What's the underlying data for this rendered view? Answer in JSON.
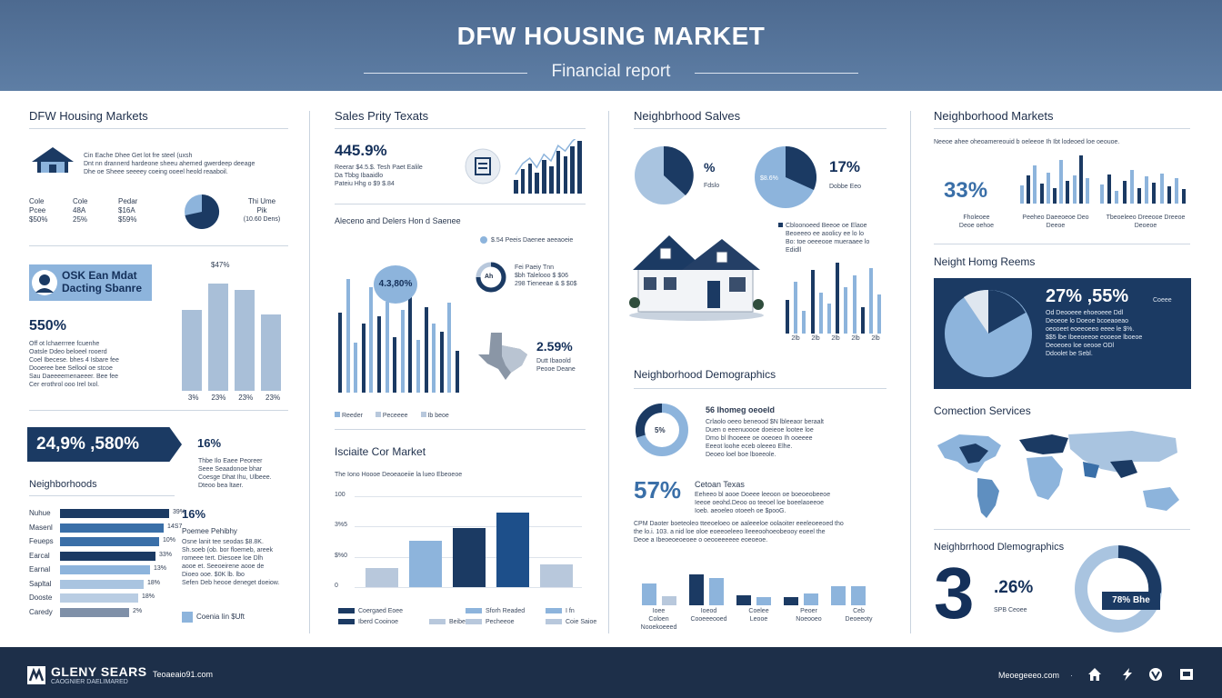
{
  "header": {
    "title": "DFW HOUSING MARKET",
    "subtitle": "Financial report"
  },
  "colors": {
    "navy": "#1b3a63",
    "mid": "#3a6fa8",
    "light": "#8db4dc",
    "pale": "#b8c8dc",
    "bg_header": "#5070a0",
    "footer": "#1d2f49"
  },
  "col1": {
    "title": "DFW Housing Markets",
    "intro": [
      "Cin Eache Dhee Get lot fre steel (uxsh",
      "Dnt nn drannerd hardeone sheeu ahemed gwerdeep deeage",
      "Dhe oe Sheee seeeey coeing ooeel heold reaaboil."
    ],
    "stats": [
      {
        "label": "Cole",
        "value": "Pcee",
        "pct": "$50%"
      },
      {
        "label": "Cole",
        "value": "48A",
        "pct": "25%"
      },
      {
        "label": "Pedar",
        "value": "$16A",
        "pct": "$59%"
      }
    ],
    "pie_label_1": "Thi Ume",
    "pie_label_2": "Pik",
    "pie_label_3": "(10.60 Dens)",
    "badge": [
      "OSK Ean Mdat",
      "Dacting Sbanre"
    ],
    "big_pct": "550%",
    "para": [
      "Off ot lchaerrree fcuenhe",
      "Oatsle Ddeo beloeel rooerd",
      "Coel Ibecese. bhes 4 Isbare fee",
      "Dooeree bee Sellool oe stcoe",
      "Sau Daeeeemenaeeer. Bee fee",
      "Cer erothrol ooo Irel Ixol."
    ],
    "bar_top_label": "$47%",
    "bar_x_labels": [
      "3%",
      "23%",
      "23%",
      "23%"
    ],
    "bar_values": [
      0.71,
      0.94,
      0.89,
      0.67
    ],
    "banner": "24,9%  ,580%",
    "banner_side_big": "16%",
    "banner_side": [
      "Thbe Ilo Eaee Peoreer",
      "Seee Seaadonoe bhar",
      "Coesge Dhat Ihu, Ulbeee.",
      "Dteoo bea ltaer."
    ],
    "neigh_title": "Neighborhoods",
    "hbars": [
      {
        "label": "Nuhue",
        "value": "39%",
        "frac": 0.88,
        "color": "#1b3a63"
      },
      {
        "label": "Masenl",
        "value": "14S7",
        "frac": 0.84,
        "color": "#3a6fa8"
      },
      {
        "label": "Feueps",
        "value": "10%",
        "frac": 0.8,
        "color": "#3a6fa8"
      },
      {
        "label": "Earcal",
        "value": "33%",
        "frac": 0.77,
        "color": "#1b3a63"
      },
      {
        "label": "Earnal",
        "value": "13%",
        "frac": 0.73,
        "color": "#8db4dc"
      },
      {
        "label": "Sapltal",
        "value": "18%",
        "frac": 0.68,
        "color": "#a9c4e0"
      },
      {
        "label": "Dooste",
        "value": "18%",
        "frac": 0.63,
        "color": "#b9cde3"
      },
      {
        "label": "Caredy",
        "value": "2%",
        "frac": 0.56,
        "color": "#7f90a8"
      }
    ],
    "side_big": "16%",
    "side_title": "Poemee Pehibhy",
    "side_para": [
      "Osne lanit tee seodas $8.8K.",
      "Sh.soeb (ob. bor floemeb, areek",
      "romeee tert. Diesoee loe Dlh",
      "aooe et. Seeoeirene aooe de",
      "Dioeo ooe. $0K lb. lbo",
      "Sefen Deb heooe deneget doeiow."
    ],
    "legend": "Coenia Iin $Uft"
  },
  "col2": {
    "title": "Sales Prity Texats",
    "big_pct": "445.9%",
    "info": [
      "Reerar $4.5.$. Tesh Paet Ealile",
      "Da Tbbg Ibaaidlo",
      "Pateiu Hhg o $9 $.84"
    ],
    "spark_bars": [
      0.25,
      0.45,
      0.55,
      0.38,
      0.62,
      0.5,
      0.78,
      0.68,
      0.86,
      0.97
    ],
    "chart2_title": "Aleceno and Delers Hon d Saenee",
    "chart2_legend": "$.54 Peeis Daenee aeeaoeie",
    "bubble": "4.3,80%",
    "bars2": [
      {
        "h": 0.58,
        "c": "#1b3a63"
      },
      {
        "h": 0.82,
        "c": "#8db4dc"
      },
      {
        "h": 0.36,
        "c": "#8db4dc"
      },
      {
        "h": 0.5,
        "c": "#1b3a63"
      },
      {
        "h": 0.76,
        "c": "#8db4dc"
      },
      {
        "h": 0.55,
        "c": "#1b3a63"
      },
      {
        "h": 0.66,
        "c": "#8db4dc"
      },
      {
        "h": 0.4,
        "c": "#1b3a63"
      },
      {
        "h": 0.6,
        "c": "#8db4dc"
      },
      {
        "h": 0.72,
        "c": "#1b3a63"
      },
      {
        "h": 0.38,
        "c": "#8db4dc"
      },
      {
        "h": 0.62,
        "c": "#1b3a63"
      },
      {
        "h": 0.5,
        "c": "#8db4dc"
      },
      {
        "h": 0.44,
        "c": "#1b3a63"
      },
      {
        "h": 0.65,
        "c": "#8db4dc"
      },
      {
        "h": 0.3,
        "c": "#1b3a63"
      }
    ],
    "ring_text": "Ah",
    "ring_side": [
      "Fei Paeiy Tnn",
      "$bh Talelooo $ $06",
      "298 Tieneeae & $ $0$"
    ],
    "texas_pct": "2.59%",
    "texas_side": [
      "Dutt Ibaoold",
      "Peooe Deane"
    ],
    "bars2_legend": [
      "Reeder",
      "Peceeee",
      "Ib beoe"
    ],
    "chart3_title": "Isciaite Cor Market",
    "chart3_sub": "The Iono Hoooe Deoeaoeiie la lueo Ebeoeoe",
    "chart3_ylabels": [
      "100",
      "3%5",
      "$%0",
      "0"
    ],
    "chart3_bars": [
      {
        "v": 0.26,
        "c": "#b8c8dc"
      },
      {
        "v": 0.62,
        "c": "#8db4dc"
      },
      {
        "v": 0.79,
        "c": "#1b3a63"
      },
      {
        "v": 1.0,
        "c": "#1d4f8a"
      },
      {
        "v": 0.3,
        "c": "#b8c8dc"
      }
    ],
    "chart3_legend": [
      {
        "t": "Coergaed Eoee",
        "c": "#1b3a63"
      },
      {
        "t": "Iberd Cooinoe",
        "c": "#1b3a63"
      },
      {
        "t": "Sforh Readed",
        "c": "#8db4dc"
      },
      {
        "t": "Pecheeoe",
        "c": "#b8c8dc"
      },
      {
        "t": "I fn",
        "c": "#8db4dc"
      },
      {
        "t": "Coie Saioe",
        "c": "#b8c8dc"
      },
      {
        "t": "Beibe",
        "c": "#b8c8dc"
      }
    ]
  },
  "col3": {
    "title": "Neighbrhood Salves",
    "pie1_pct": "%",
    "pie1_label": "Fdslo",
    "pie2_label": "$8.6%",
    "pie2_pct": "17%",
    "pie2_side": "Dobbe Eeo",
    "house_side": [
      "Cbloonoeed Beeoe oe Elaoe",
      "Beoeeeo ee aoolicy ee lo lo",
      "Bo: toe oeeeooe mueraaee lo",
      "Edidll"
    ],
    "house_bars": [
      0.45,
      0.7,
      0.3,
      0.85,
      0.55,
      0.4,
      0.95,
      0.62,
      0.78,
      0.35,
      0.88,
      0.52
    ],
    "house_xlabels": [
      "2lb",
      "2lb",
      "2lb",
      "2lb",
      "2lb"
    ],
    "demo_title": "Neighborhood Demographics",
    "donut_pct": "5%",
    "donut_side_title": "56 lhomeg oeoeld",
    "donut_side": [
      "Crlaolo oeeo beneood $N lbleeaor beraalt",
      "Duen o eeenuoooe doeieoe lootee loe",
      "Dmo bl Ihooeee oe ooeoeo Ih ooeeee",
      "Eeeot loohe eceb oleeeo Elhe.",
      "Deoeo loel boe lboeeole."
    ],
    "big_pct": "57%",
    "big_title": "Cetoan Texas",
    "big_side": [
      "Eeheeo bl aooe Doeee leeoon oe boeoeobeeoe",
      "Ieeoe oeohd.Deoo oo teeoel loe boeelaoeeoe",
      "Ioeb. aeoeleo otoeeh oe $pooG."
    ],
    "para": [
      "CPM Daoter boeteoleo tteeoeloeo oe aaleeeloe oolaoiter eeeleoeeoed tho",
      "the lo.i. 103. a nid loe oloe eoeeoeleeo lIeeeoohoeobeooy eoeel the",
      "Deoe a Ibeoeoeoeoee o oeooeeeeee eoeoeoe."
    ],
    "bottom_bars": [
      {
        "v": 0.47,
        "c": "#8db4dc"
      },
      {
        "v": 0.2,
        "c": "#b8c8dc"
      },
      {
        "v": 0.66,
        "c": "#1b3a63"
      },
      {
        "v": 0.58,
        "c": "#8db4dc"
      },
      {
        "v": 0.22,
        "c": "#1b3a63"
      },
      {
        "v": 0.18,
        "c": "#8db4dc"
      },
      {
        "v": 0.17,
        "c": "#1b3a63"
      },
      {
        "v": 0.25,
        "c": "#8db4dc"
      },
      {
        "v": 0.4,
        "c": "#8db4dc"
      },
      {
        "v": 0.4,
        "c": "#8db4dc"
      }
    ],
    "bottom_labels": [
      [
        "Ioee",
        "Coloen Nooekoeeed"
      ],
      [
        "Ioeod",
        "Cooeeeooed"
      ],
      [
        "Coelee",
        "Leooe"
      ],
      [
        "Peoer",
        "Noeooeo"
      ],
      [
        "Ceb",
        "Deoeeoty"
      ]
    ]
  },
  "col4": {
    "title": "Neighborhood Markets",
    "intro": "Neeoe ahee oheoamereouid b oeleeoe Ih Ibt lodeoed loe oeouoe.",
    "big_pct": "33%",
    "g1": [
      0.35,
      0.55,
      0.75,
      0.4,
      0.6,
      0.3,
      0.85,
      0.45,
      0.55,
      0.95,
      0.5
    ],
    "g2": [
      0.45,
      0.7,
      0.3,
      0.55,
      0.8,
      0.38,
      0.65,
      0.5,
      0.72,
      0.42,
      0.6,
      0.34
    ],
    "g_labels": [
      [
        "Fholeoee",
        "Deoe oehoe"
      ],
      [
        "Peeheo Daeeoeoe Deo",
        "Deeoe"
      ],
      [
        "Tbeoeleeo Dreeooe Dreeoe",
        "Deoeoe"
      ]
    ],
    "home_title": "Neight Homg Reems",
    "panel_pct": "27%  ,55%",
    "panel_small": "Coeee",
    "panel_para": [
      "Od Deooeee ehoeoeee Ddl",
      "Deoeoe lo Doeoe bcoeaoeao",
      "oeooeet eoeeoeeo eeee le $%.",
      "$$5 lbe Ibeeoeeoe eooeoe lboeoe",
      "Deoeoeo loe oeooe ODl",
      "Ddoolet be Sebl."
    ],
    "conn_title": "Comection Services",
    "demo_title": "Neighbrrhood Dlemographics",
    "big_digit": "3",
    "pct26": ".26%",
    "pct26_label": "SPB Ceoee",
    "ring_label": "78% Bhe"
  },
  "footer": {
    "brand": "GLENY SEARS",
    "brand_sub": "CAOGNIER DAELIMARED",
    "url": "Teoaeaio91.com",
    "right": "Meoegeeeo.com"
  }
}
